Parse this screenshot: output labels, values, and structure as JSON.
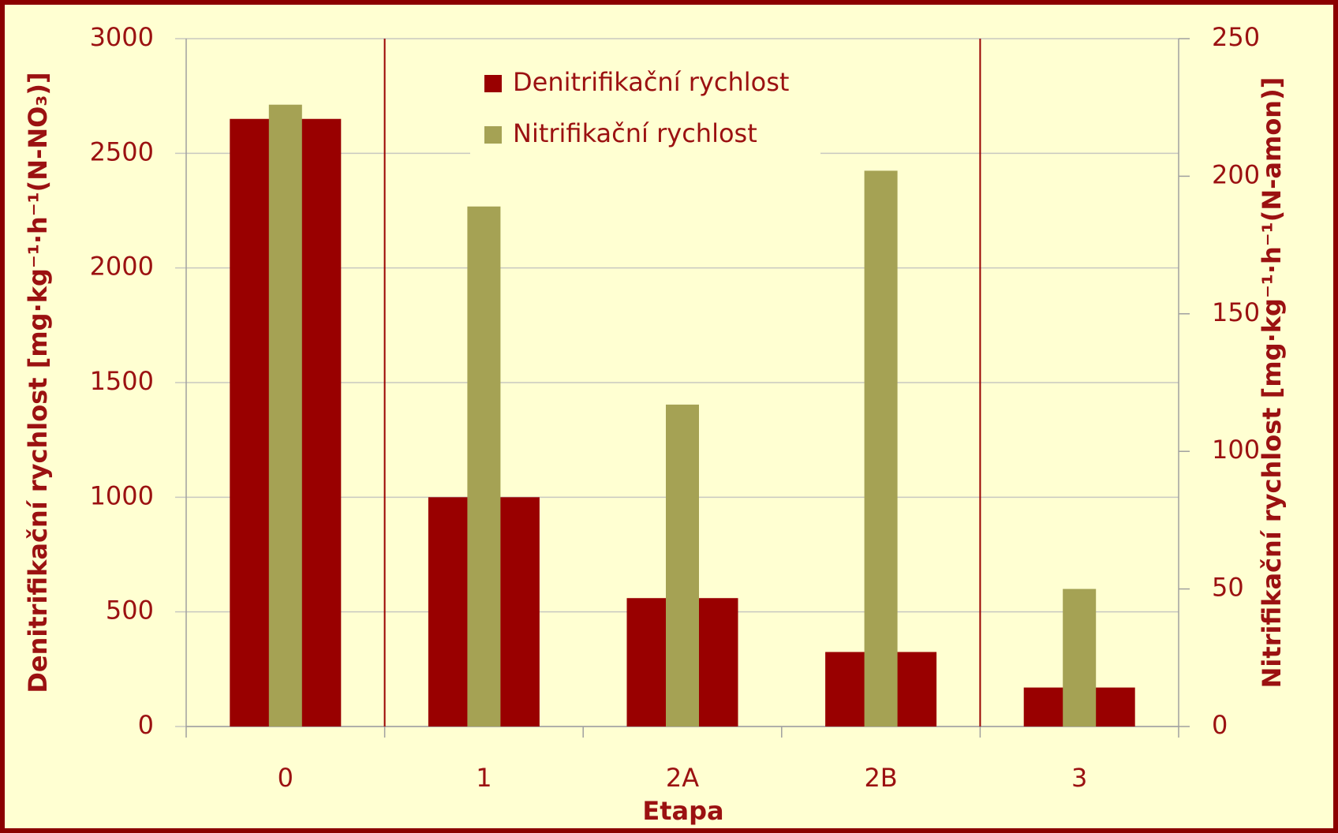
{
  "chart_data": {
    "type": "bar",
    "x_label": "Etapa",
    "y_label": "Denitrifikační rychlost [mg·kg⁻¹·h⁻¹(N-NO₃)]",
    "y2_label": "Nitrifikační rychlost [mg·kg⁻¹·h⁻¹(N-amon)]",
    "categories": [
      "0",
      "1",
      "2A",
      "2B",
      "3"
    ],
    "series": [
      {
        "name": "Denitrifikační rychlost",
        "color": "#990000",
        "values": [
          2650,
          1000,
          560,
          325,
          170
        ]
      },
      {
        "name": "Nitrifikační rychlost",
        "color": "#a5a254",
        "axis": "y2",
        "values": [
          226,
          189,
          117,
          202,
          50
        ]
      }
    ],
    "ylim": [
      0,
      3000
    ],
    "yticks": [
      0,
      500,
      1000,
      1500,
      2000,
      2500,
      3000
    ],
    "y2lim": [
      0,
      250
    ],
    "y2ticks": [
      0,
      50,
      100,
      150,
      200,
      250
    ],
    "grid": true,
    "legend": "top"
  }
}
